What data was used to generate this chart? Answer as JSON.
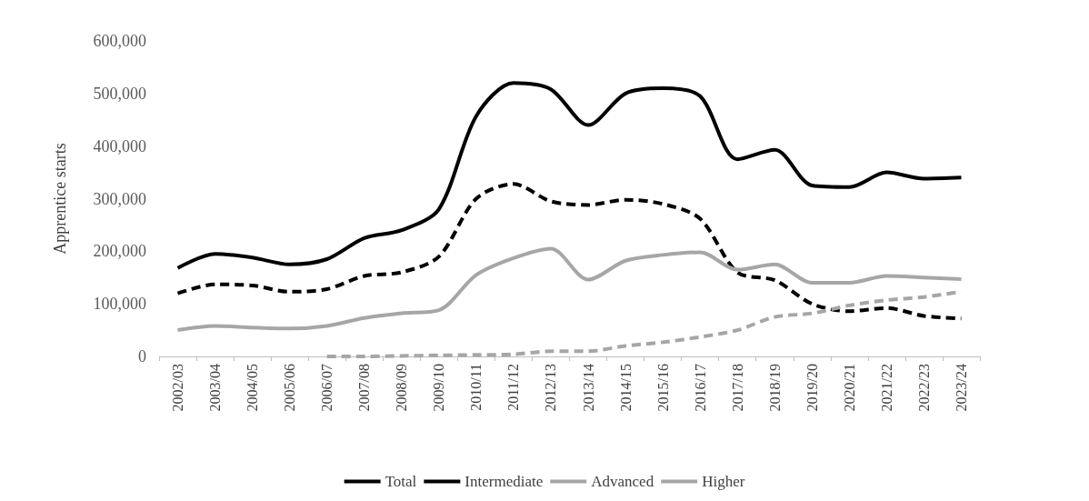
{
  "chart_data": {
    "type": "line",
    "ylabel": "Apprentice starts",
    "categories": [
      "2002/03",
      "2003/04",
      "2004/05",
      "2005/06",
      "2006/07",
      "2007/08",
      "2008/09",
      "2009/10",
      "2010/11",
      "2011/12",
      "2012/13",
      "2013/14",
      "2014/15",
      "2015/16",
      "2016/17",
      "2017/18",
      "2018/19",
      "2019/20",
      "2020/21",
      "2021/22",
      "2022/23",
      "2023/24"
    ],
    "series": [
      {
        "name": "Total",
        "color": "#000000",
        "line_style": "solid",
        "values": [
          168000,
          195000,
          188000,
          175000,
          185000,
          225000,
          240000,
          280000,
          457000,
          520000,
          508000,
          440000,
          500000,
          510000,
          495000,
          375000,
          393000,
          325000,
          322000,
          350000,
          338000,
          340000
        ]
      },
      {
        "name": "Intermediate",
        "color": "#000000",
        "line_style": "dashed",
        "values": [
          120000,
          137000,
          135000,
          123000,
          128000,
          153000,
          160000,
          190000,
          300000,
          328000,
          295000,
          288000,
          298000,
          290000,
          262000,
          160000,
          145000,
          100000,
          86000,
          92000,
          77000,
          72000
        ]
      },
      {
        "name": "Advanced",
        "color": "#a6a6a6",
        "line_style": "solid",
        "values": [
          50000,
          58000,
          55000,
          53000,
          58000,
          73000,
          82000,
          88000,
          155000,
          187000,
          205000,
          146000,
          182000,
          193000,
          198000,
          165000,
          175000,
          140000,
          140000,
          153000,
          150000,
          147000
        ]
      },
      {
        "name": "Higher",
        "color": "#a6a6a6",
        "line_style": "dashed",
        "values": [
          null,
          null,
          null,
          null,
          0,
          0,
          1000,
          2000,
          3000,
          4000,
          10000,
          10000,
          20000,
          27000,
          37000,
          50000,
          75000,
          82000,
          97000,
          107000,
          113000,
          123000
        ]
      }
    ],
    "ylim": [
      0,
      600000
    ],
    "yticks": [
      {
        "value": 0,
        "label": "0"
      },
      {
        "value": 100000,
        "label": "100,000"
      },
      {
        "value": 200000,
        "label": "200,000"
      },
      {
        "value": 300000,
        "label": "300,000"
      },
      {
        "value": 400000,
        "label": "400,000"
      },
      {
        "value": 500000,
        "label": "500,000"
      },
      {
        "value": 600000,
        "label": "600,000"
      }
    ],
    "grid": false,
    "legend": "bottom",
    "marker": "none"
  }
}
